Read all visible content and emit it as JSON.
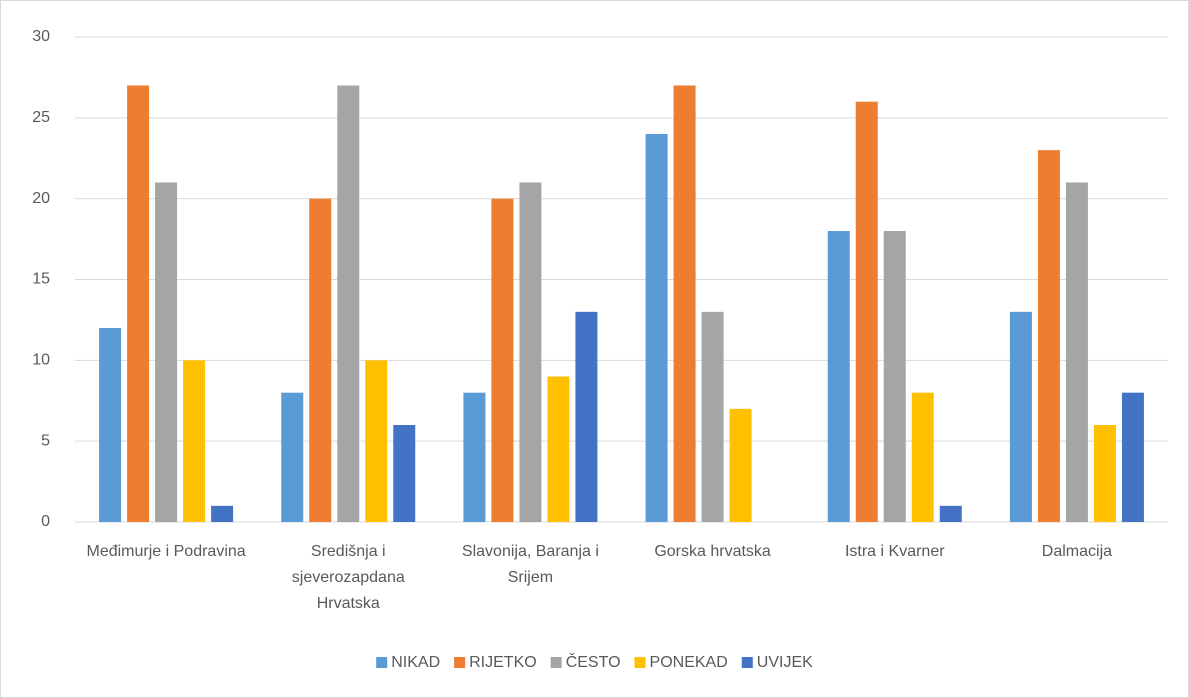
{
  "chart_data": {
    "type": "bar",
    "categories": [
      "Međimurje i Podravina",
      "Središnja i sjeverozapdana Hrvatska",
      "Slavonija, Baranja i Srijem",
      "Gorska hrvatska",
      "Istra i Kvarner",
      "Dalmacija"
    ],
    "series": [
      {
        "name": "NIKAD",
        "color": "#5b9bd5",
        "values": [
          12,
          8,
          8,
          24,
          18,
          13
        ]
      },
      {
        "name": "RIJETKO",
        "color": "#ed7d31",
        "values": [
          27,
          20,
          20,
          27,
          26,
          23
        ]
      },
      {
        "name": "ČESTO",
        "color": "#a5a5a5",
        "values": [
          21,
          27,
          21,
          13,
          18,
          21
        ]
      },
      {
        "name": "PONEKAD",
        "color": "#ffc000",
        "values": [
          10,
          10,
          9,
          7,
          8,
          6
        ]
      },
      {
        "name": "UVIJEK",
        "color": "#4472c4",
        "values": [
          1,
          6,
          13,
          0,
          1,
          8
        ]
      }
    ],
    "ylim": [
      0,
      30
    ],
    "yticks": [
      0,
      5,
      10,
      15,
      20,
      25,
      30
    ],
    "grid": true,
    "legend": "bottom"
  }
}
